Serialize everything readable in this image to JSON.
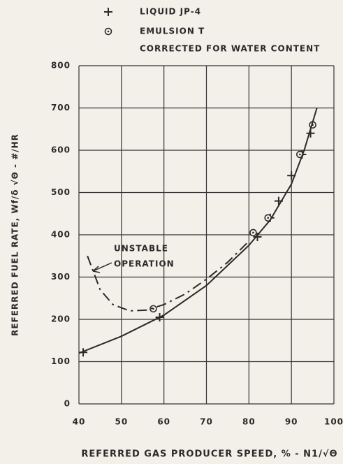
{
  "chart_data": {
    "type": "scatter",
    "xlabel": "REFERRED GAS PRODUCER SPEED, % - N1/√Θ",
    "ylabel": "REFERRED FUEL RATE, Wf/δ √Θ - #/HR",
    "legend_note": "CORRECTED FOR WATER CONTENT",
    "annotation": [
      "UNSTABLE",
      "OPERATION"
    ],
    "xlim": [
      40,
      100
    ],
    "xticks": [
      40,
      50,
      60,
      70,
      80,
      90,
      100
    ],
    "ylim": [
      0,
      800
    ],
    "yticks": [
      0,
      100,
      200,
      300,
      400,
      500,
      600,
      700,
      800
    ],
    "grid": true,
    "color": "#2a2a2a",
    "series": [
      {
        "name": "LIQUID JP-4",
        "marker": "plus",
        "x": [
          41,
          59,
          82,
          85,
          87,
          90,
          92.5,
          94.5
        ],
        "values": [
          122,
          205,
          395,
          440,
          480,
          540,
          590,
          640
        ]
      },
      {
        "name": "EMULSION T",
        "marker": "circle-dot",
        "x": [
          57.5,
          81,
          84.5,
          92,
          95
        ],
        "values": [
          225,
          405,
          440,
          590,
          660
        ]
      },
      {
        "style": "solid",
        "x": [
          40,
          50,
          60,
          70,
          80,
          85,
          90,
          93,
          96
        ],
        "values": [
          120,
          160,
          210,
          280,
          375,
          435,
          520,
          600,
          700
        ]
      },
      {
        "style": "dashed",
        "x": [
          42,
          45,
          48,
          52,
          56,
          60,
          65,
          70,
          75,
          80
        ],
        "values": [
          350,
          270,
          235,
          220,
          222,
          235,
          260,
          295,
          335,
          385
        ]
      }
    ]
  }
}
